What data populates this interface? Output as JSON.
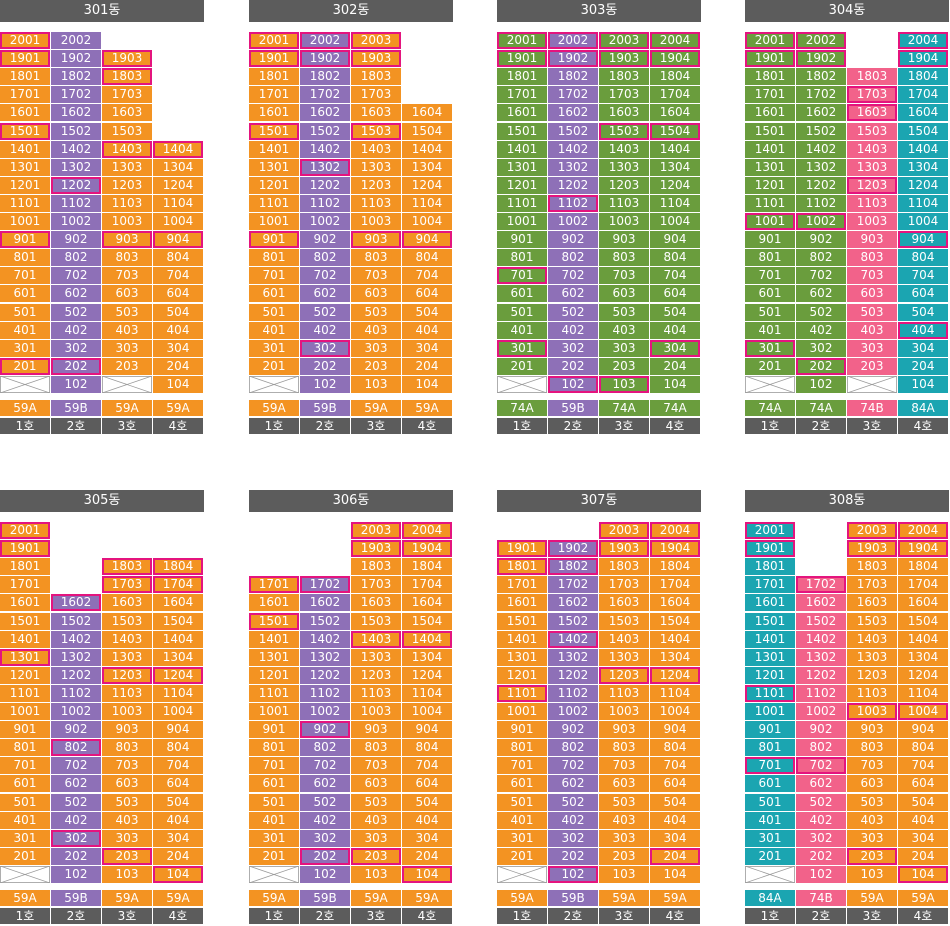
{
  "colors": {
    "59A": "#f39322",
    "59B": "#8e70b7",
    "74A": "#6a9d3d",
    "74B": "#f2628a",
    "84A": "#1ba5b1",
    "header_bg": "#5c5c5c",
    "highlight": "#e4147e"
  },
  "buildings": [
    {
      "name": "301동",
      "lines": [
        {
          "unit": "1호",
          "type": "59A",
          "top": 20,
          "bottom": 2,
          "pilotis": true,
          "sel": [
            20,
            19,
            15,
            9,
            2
          ]
        },
        {
          "unit": "2호",
          "type": "59B",
          "top": 20,
          "bottom": 1,
          "pilotis": false,
          "sel": [
            12,
            2
          ]
        },
        {
          "unit": "3호",
          "type": "59A",
          "top": 19,
          "bottom": 2,
          "pilotis": true,
          "sel": [
            19,
            18,
            14,
            9
          ]
        },
        {
          "unit": "4호",
          "type": "59A",
          "top": 14,
          "bottom": 1,
          "pilotis": false,
          "sel": [
            14,
            9
          ]
        }
      ]
    },
    {
      "name": "302동",
      "lines": [
        {
          "unit": "1호",
          "type": "59A",
          "top": 20,
          "bottom": 2,
          "pilotis": true,
          "sel": [
            20,
            19,
            15,
            9
          ]
        },
        {
          "unit": "2호",
          "type": "59B",
          "top": 20,
          "bottom": 1,
          "pilotis": false,
          "sel": [
            20,
            19,
            13,
            3
          ]
        },
        {
          "unit": "3호",
          "type": "59A",
          "top": 20,
          "bottom": 1,
          "pilotis": false,
          "sel": [
            20,
            19,
            15,
            9
          ]
        },
        {
          "unit": "4호",
          "type": "59A",
          "top": 16,
          "bottom": 1,
          "pilotis": false,
          "sel": [
            9
          ]
        }
      ]
    },
    {
      "name": "303동",
      "lines": [
        {
          "unit": "1호",
          "type": "74A",
          "top": 20,
          "bottom": 2,
          "pilotis": true,
          "sel": [
            20,
            19,
            7,
            3
          ]
        },
        {
          "unit": "2호",
          "type": "59B",
          "top": 20,
          "bottom": 1,
          "pilotis": false,
          "sel": [
            20,
            19,
            11,
            1
          ]
        },
        {
          "unit": "3호",
          "type": "74A",
          "top": 20,
          "bottom": 1,
          "pilotis": false,
          "sel": [
            20,
            19,
            15,
            1
          ]
        },
        {
          "unit": "4호",
          "type": "74A",
          "top": 20,
          "bottom": 1,
          "pilotis": false,
          "sel": [
            20,
            19,
            15,
            3
          ]
        }
      ]
    },
    {
      "name": "304동",
      "lines": [
        {
          "unit": "1호",
          "type": "74A",
          "top": 20,
          "bottom": 2,
          "pilotis": true,
          "sel": [
            20,
            19,
            10,
            3
          ]
        },
        {
          "unit": "2호",
          "type": "74A",
          "top": 20,
          "bottom": 1,
          "pilotis": false,
          "sel": [
            20,
            19,
            10,
            2
          ]
        },
        {
          "unit": "3호",
          "type": "74B",
          "top": 18,
          "bottom": 2,
          "pilotis": true,
          "sel": [
            17,
            16,
            12
          ]
        },
        {
          "unit": "4호",
          "type": "84A",
          "top": 20,
          "bottom": 1,
          "pilotis": false,
          "sel": [
            20,
            19,
            9,
            4
          ]
        }
      ]
    },
    {
      "name": "305동",
      "lines": [
        {
          "unit": "1호",
          "type": "59A",
          "top": 20,
          "bottom": 2,
          "pilotis": true,
          "sel": [
            20,
            19,
            13
          ]
        },
        {
          "unit": "2호",
          "type": "59B",
          "top": 16,
          "bottom": 1,
          "pilotis": false,
          "sel": [
            16,
            8,
            3
          ]
        },
        {
          "unit": "3호",
          "type": "59A",
          "top": 18,
          "bottom": 1,
          "pilotis": false,
          "sel": [
            18,
            17,
            12,
            2
          ]
        },
        {
          "unit": "4호",
          "type": "59A",
          "top": 18,
          "bottom": 1,
          "pilotis": false,
          "sel": [
            18,
            17,
            12,
            1
          ]
        }
      ]
    },
    {
      "name": "306동",
      "lines": [
        {
          "unit": "1호",
          "type": "59A",
          "top": 17,
          "bottom": 2,
          "pilotis": true,
          "sel": [
            17,
            15
          ]
        },
        {
          "unit": "2호",
          "type": "59B",
          "top": 17,
          "bottom": 1,
          "pilotis": false,
          "sel": [
            17,
            9,
            2
          ]
        },
        {
          "unit": "3호",
          "type": "59A",
          "top": 20,
          "bottom": 1,
          "pilotis": false,
          "sel": [
            20,
            19,
            14,
            2
          ]
        },
        {
          "unit": "4호",
          "type": "59A",
          "top": 20,
          "bottom": 1,
          "pilotis": false,
          "sel": [
            20,
            19,
            14,
            1
          ]
        }
      ]
    },
    {
      "name": "307동",
      "lines": [
        {
          "unit": "1호",
          "type": "59A",
          "top": 19,
          "bottom": 2,
          "pilotis": true,
          "sel": [
            19,
            18,
            11
          ]
        },
        {
          "unit": "2호",
          "type": "59B",
          "top": 19,
          "bottom": 1,
          "pilotis": false,
          "sel": [
            19,
            18,
            14,
            1
          ]
        },
        {
          "unit": "3호",
          "type": "59A",
          "top": 20,
          "bottom": 1,
          "pilotis": false,
          "sel": [
            20,
            19,
            12
          ]
        },
        {
          "unit": "4호",
          "type": "59A",
          "top": 20,
          "bottom": 1,
          "pilotis": false,
          "sel": [
            20,
            19,
            12,
            2
          ]
        }
      ]
    },
    {
      "name": "308동",
      "lines": [
        {
          "unit": "1호",
          "type": "84A",
          "top": 20,
          "bottom": 2,
          "pilotis": true,
          "sel": [
            20,
            19,
            11,
            7
          ]
        },
        {
          "unit": "2호",
          "type": "74B",
          "top": 17,
          "bottom": 1,
          "pilotis": false,
          "sel": [
            17,
            7
          ]
        },
        {
          "unit": "3호",
          "type": "59A",
          "top": 20,
          "bottom": 1,
          "pilotis": false,
          "sel": [
            20,
            19,
            10,
            2
          ]
        },
        {
          "unit": "4호",
          "type": "59A",
          "top": 20,
          "bottom": 1,
          "pilotis": false,
          "sel": [
            20,
            19,
            10,
            1
          ]
        }
      ]
    }
  ]
}
